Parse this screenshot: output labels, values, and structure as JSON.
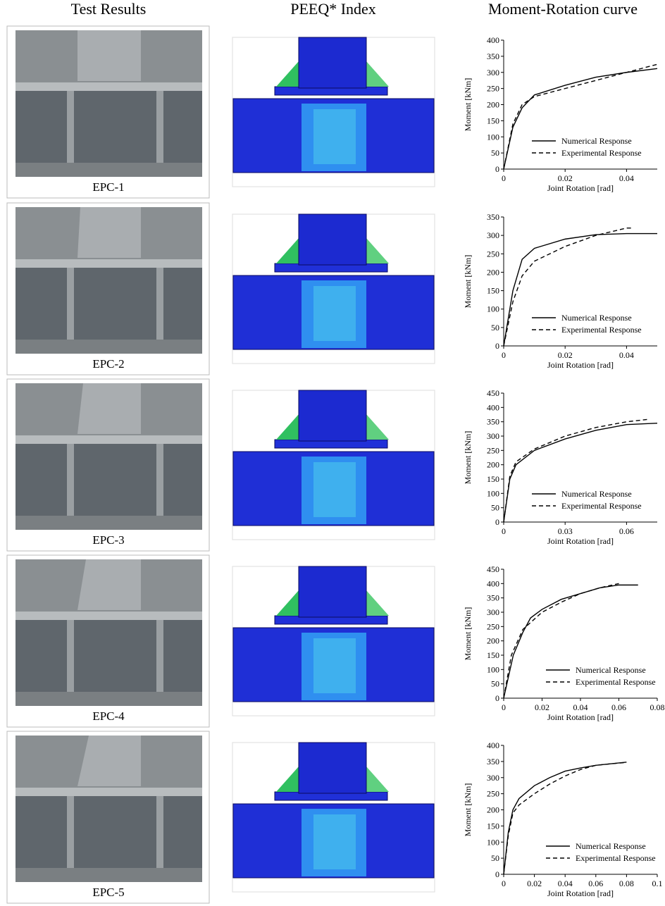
{
  "headers": [
    "Test Results",
    "PEEQ* Index",
    "Moment-Rotation curve"
  ],
  "photos": [
    {
      "caption": "EPC-1"
    },
    {
      "caption": "EPC-2"
    },
    {
      "caption": "EPC-3"
    },
    {
      "caption": "EPC-4"
    },
    {
      "caption": "EPC-5"
    }
  ],
  "chart_data": [
    {
      "type": "line",
      "xlabel": "Joint Rotation [rad]",
      "ylabel": "Moment [kNm]",
      "xlim": [
        0,
        0.05
      ],
      "ylim": [
        0,
        400
      ],
      "xticks": [
        0,
        0.02,
        0.04
      ],
      "yticks": [
        0,
        50,
        100,
        150,
        200,
        250,
        300,
        350,
        400
      ],
      "series": [
        {
          "name": "Numerical Response",
          "color": "#000000",
          "line_style": "solid",
          "x": [
            0,
            0.003,
            0.006,
            0.01,
            0.02,
            0.03,
            0.04,
            0.05
          ],
          "values": [
            0,
            130,
            190,
            230,
            260,
            285,
            300,
            312
          ]
        },
        {
          "name": "Experimental Response",
          "color": "#000000",
          "line_style": "dashed",
          "x": [
            0,
            0.003,
            0.006,
            0.01,
            0.02,
            0.03,
            0.04,
            0.05
          ],
          "values": [
            0,
            140,
            200,
            225,
            250,
            275,
            300,
            325
          ]
        }
      ]
    },
    {
      "type": "line",
      "xlabel": "Joint Rotation [rad]",
      "ylabel": "Moment [kNm]",
      "xlim": [
        0,
        0.05
      ],
      "ylim": [
        0,
        350
      ],
      "xticks": [
        0,
        0.02,
        0.04
      ],
      "yticks": [
        0,
        50,
        100,
        150,
        200,
        250,
        300,
        350
      ],
      "series": [
        {
          "name": "Numerical Response",
          "color": "#000000",
          "line_style": "solid",
          "x": [
            0,
            0.003,
            0.006,
            0.01,
            0.02,
            0.03,
            0.04,
            0.05
          ],
          "values": [
            0,
            150,
            235,
            265,
            290,
            302,
            305,
            305
          ]
        },
        {
          "name": "Experimental Response",
          "color": "#000000",
          "line_style": "dashed",
          "x": [
            0,
            0.003,
            0.006,
            0.01,
            0.02,
            0.03,
            0.04,
            0.042
          ],
          "values": [
            0,
            120,
            190,
            230,
            270,
            300,
            320,
            320
          ]
        }
      ]
    },
    {
      "type": "line",
      "xlabel": "Joint Rotation [rad]",
      "ylabel": "Moment [kNm]",
      "xlim": [
        0,
        0.075
      ],
      "ylim": [
        0,
        450
      ],
      "xticks": [
        0,
        0.03,
        0.06
      ],
      "yticks": [
        0,
        50,
        100,
        150,
        200,
        250,
        300,
        350,
        400,
        450
      ],
      "series": [
        {
          "name": "Numerical Response",
          "color": "#000000",
          "line_style": "solid",
          "x": [
            0,
            0.003,
            0.006,
            0.015,
            0.03,
            0.045,
            0.06,
            0.075
          ],
          "values": [
            0,
            150,
            200,
            250,
            290,
            320,
            340,
            345
          ]
        },
        {
          "name": "Experimental Response",
          "color": "#000000",
          "line_style": "dashed",
          "x": [
            0,
            0.003,
            0.006,
            0.015,
            0.03,
            0.045,
            0.06,
            0.07
          ],
          "values": [
            0,
            160,
            210,
            255,
            300,
            330,
            350,
            358
          ]
        }
      ]
    },
    {
      "type": "line",
      "xlabel": "Joint Rotation [rad]",
      "ylabel": "Moment [kNm]",
      "xlim": [
        0,
        0.08
      ],
      "ylim": [
        0,
        450
      ],
      "xticks": [
        0,
        0.02,
        0.04,
        0.06,
        0.08
      ],
      "yticks": [
        0,
        50,
        100,
        150,
        200,
        250,
        300,
        350,
        400,
        450
      ],
      "series": [
        {
          "name": "Numerical Response",
          "color": "#000000",
          "line_style": "solid",
          "x": [
            0,
            0.005,
            0.01,
            0.014,
            0.02,
            0.03,
            0.04,
            0.05,
            0.06,
            0.07
          ],
          "values": [
            0,
            150,
            230,
            280,
            310,
            345,
            365,
            385,
            395,
            395
          ]
        },
        {
          "name": "Experimental Response",
          "color": "#000000",
          "line_style": "dashed",
          "x": [
            0,
            0.004,
            0.01,
            0.02,
            0.03,
            0.04,
            0.05,
            0.06
          ],
          "values": [
            0,
            150,
            240,
            300,
            335,
            365,
            385,
            400
          ]
        }
      ]
    },
    {
      "type": "line",
      "xlabel": "Joint Rotation [rad]",
      "ylabel": "Moment [kNm]",
      "xlim": [
        0,
        0.1
      ],
      "ylim": [
        0,
        400
      ],
      "xticks": [
        0,
        0.02,
        0.04,
        0.06,
        0.08,
        0.1
      ],
      "yticks": [
        0,
        50,
        100,
        150,
        200,
        250,
        300,
        350,
        400
      ],
      "series": [
        {
          "name": "Numerical Response",
          "color": "#000000",
          "line_style": "solid",
          "x": [
            0,
            0.003,
            0.006,
            0.01,
            0.02,
            0.03,
            0.04,
            0.05,
            0.06,
            0.07,
            0.08
          ],
          "values": [
            0,
            130,
            200,
            235,
            275,
            300,
            320,
            330,
            338,
            343,
            348
          ]
        },
        {
          "name": "Experimental Response",
          "color": "#000000",
          "line_style": "dashed",
          "x": [
            0,
            0.003,
            0.006,
            0.01,
            0.02,
            0.03,
            0.04,
            0.05,
            0.06,
            0.07,
            0.08
          ],
          "values": [
            0,
            120,
            190,
            215,
            250,
            280,
            305,
            325,
            338,
            343,
            347
          ]
        }
      ]
    }
  ]
}
